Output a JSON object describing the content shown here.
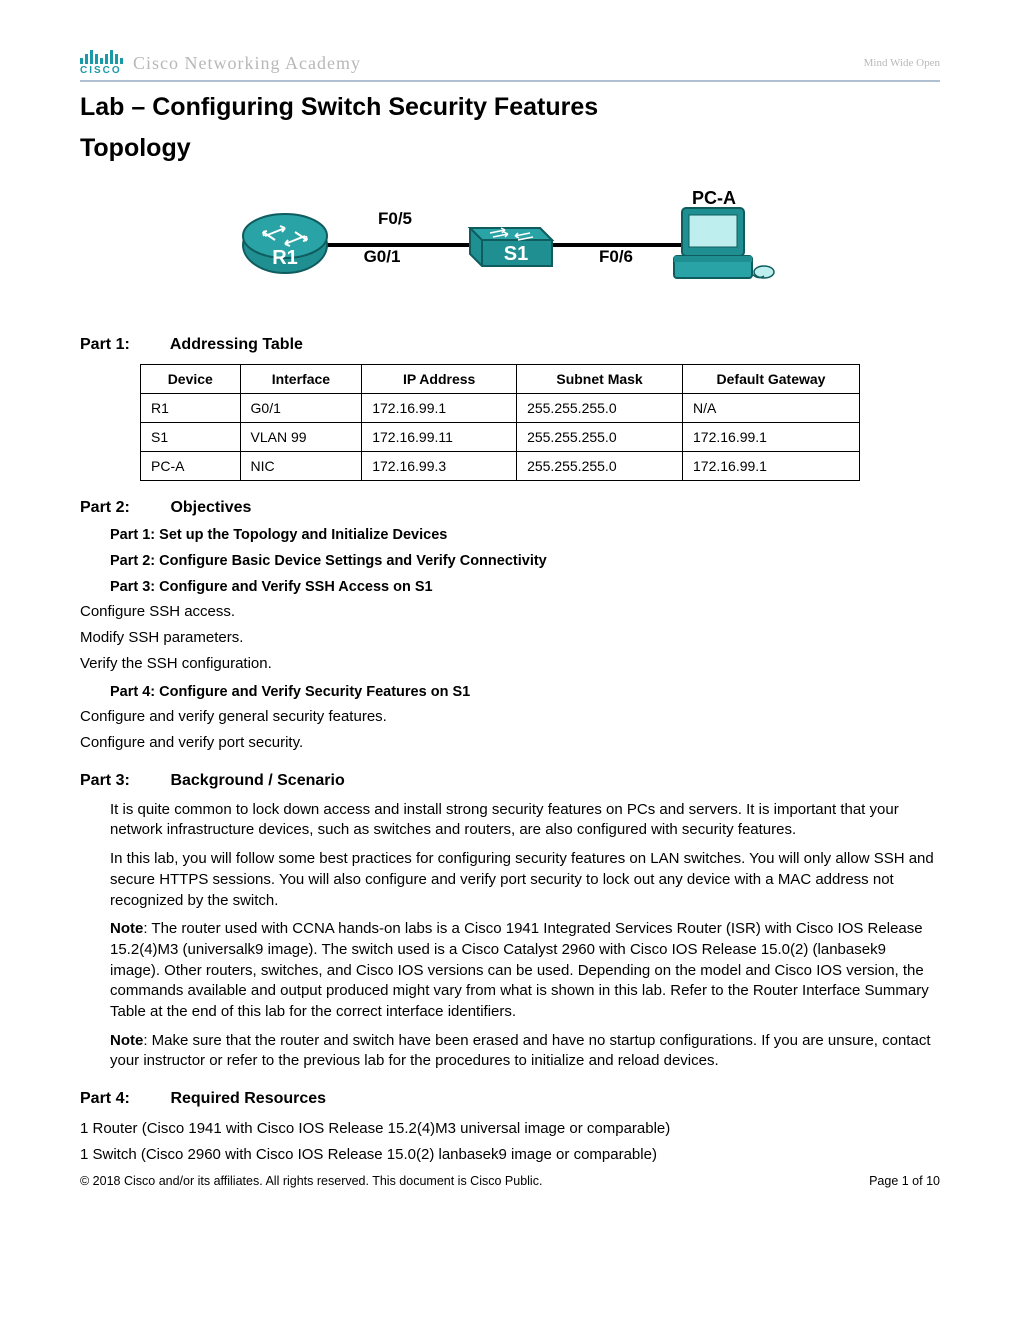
{
  "header": {
    "logo_text": "CISCO",
    "academy": "Cisco Networking Academy",
    "tagline": "Mind Wide Open"
  },
  "title_line1": "Lab – Configuring Switch Security Features",
  "title_line2": "Topology",
  "topology": {
    "r1_label": "R1",
    "s1_label": "S1",
    "pc_label": "PC-A",
    "link1_top": "F0/5",
    "link1_bottom": "G0/1",
    "link2": "F0/6",
    "device_color": "#1f8f91",
    "device_stroke": "#0f5c5e",
    "text_color": "#000000",
    "label_font_size": 17
  },
  "part1": {
    "label": "Part 1:",
    "title": "Addressing Table"
  },
  "table": {
    "headers": [
      "Device",
      "Interface",
      "IP Address",
      "Subnet Mask",
      "Default Gateway"
    ],
    "col_widths": [
      "90px",
      "110px",
      "140px",
      "150px",
      "160px"
    ],
    "rows": [
      [
        "R1",
        "G0/1",
        "172.16.99.1",
        "255.255.255.0",
        "N/A"
      ],
      [
        "S1",
        "VLAN 99",
        "172.16.99.11",
        "255.255.255.0",
        "172.16.99.1"
      ],
      [
        "PC-A",
        "NIC",
        "172.16.99.3",
        "255.255.255.0",
        "172.16.99.1"
      ]
    ]
  },
  "part2": {
    "label": "Part 2:",
    "title": "Objectives",
    "items": [
      "Part 1: Set up the Topology and Initialize Devices",
      "Part 2: Configure Basic Device Settings and Verify Connectivity",
      "Part 3: Configure and Verify SSH Access on S1"
    ],
    "sub1": [
      "Configure SSH access.",
      "Modify SSH parameters.",
      "Verify the SSH configuration."
    ],
    "item4": "Part 4: Configure and Verify Security Features on S1",
    "sub2": [
      "Configure and verify general security features.",
      "Configure and verify port security."
    ]
  },
  "part3": {
    "label": "Part 3:",
    "title": "Background / Scenario",
    "p1": "It is quite common to lock down access and install strong security features on PCs and servers. It is important that your network infrastructure devices, such as switches and routers, are also configured with security features.",
    "p2": "In this lab, you will follow some best practices for configuring security features on LAN switches. You will only allow SSH and secure HTTPS sessions. You will also configure and verify port security to lock out any device with a MAC address not recognized by the switch.",
    "note1_label": "Note",
    "note1": ": The router used with CCNA hands-on labs is a Cisco 1941 Integrated Services Router (ISR) with Cisco IOS Release 15.2(4)M3 (universalk9 image). The switch used is a Cisco Catalyst 2960 with Cisco IOS Release 15.0(2) (lanbasek9 image). Other routers, switches, and Cisco IOS versions can be used. Depending on the model and Cisco IOS version, the commands available and output produced might vary from what is shown in this lab. Refer to the Router Interface Summary Table at the end of this lab for the correct interface identifiers.",
    "note2_label": "Note",
    "note2": ": Make sure that the router and switch have been erased and have no startup configurations. If you are unsure, contact your instructor or refer to the previous lab for the procedures to initialize and reload devices."
  },
  "part4": {
    "label": "Part 4:",
    "title": "Required Resources",
    "items": [
      "1 Router (Cisco 1941 with Cisco IOS Release 15.2(4)M3 universal image or comparable)",
      "1 Switch (Cisco 2960 with Cisco IOS Release 15.0(2) lanbasek9 image or comparable)"
    ]
  },
  "footer": {
    "left": "© 2018 Cisco and/or its affiliates. All rights reserved. This document is Cisco Public.",
    "right": "Page 1 of 10"
  }
}
